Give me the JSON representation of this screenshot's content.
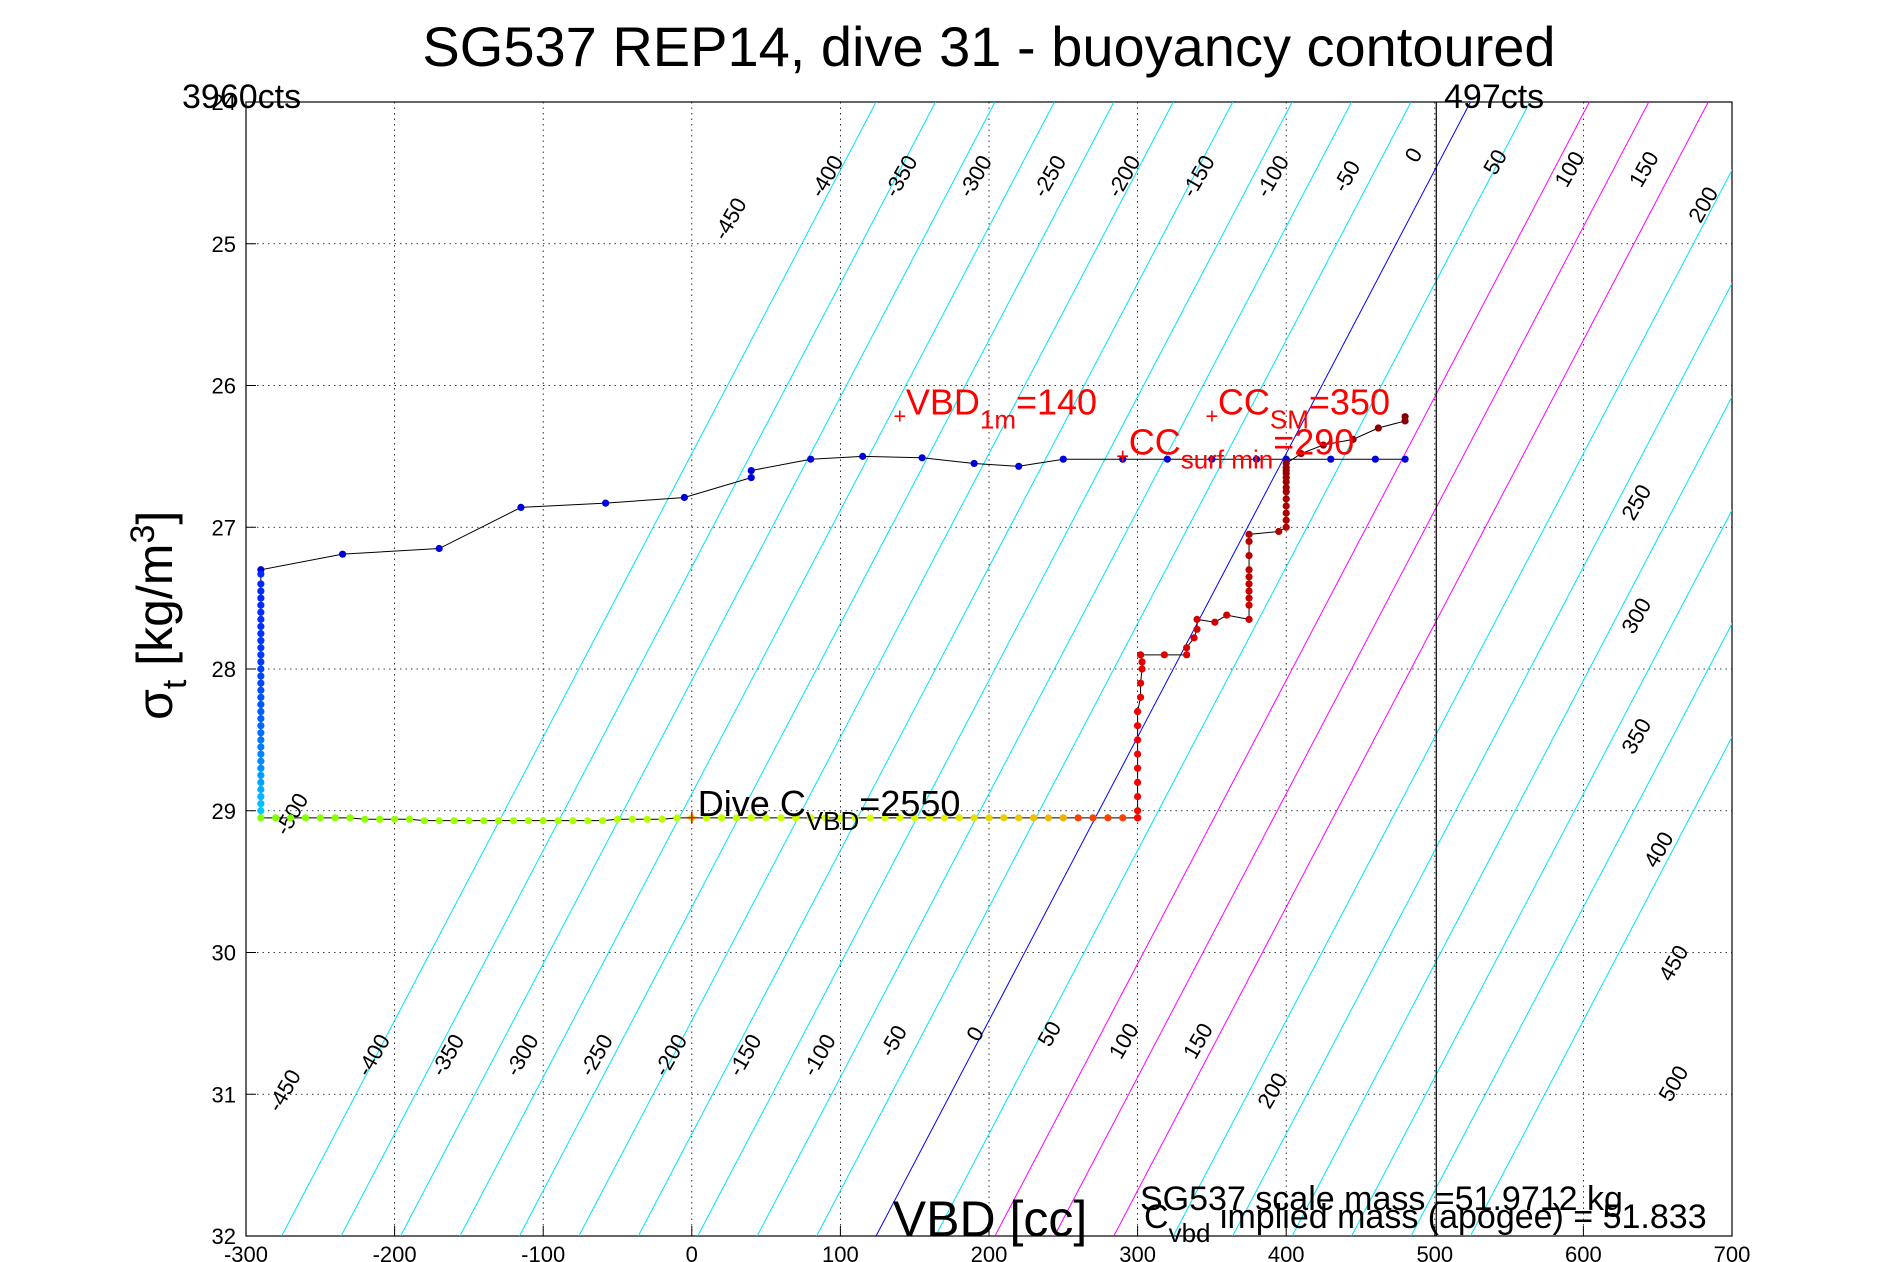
{
  "colors": {
    "background": "#ffffff",
    "grid": "#000000",
    "buoyancy_contour": "#00e5ee",
    "zero_contour": "#0000ff",
    "positive_contour": "#ff00ff",
    "annotation": "#ff0000",
    "dive_track": "#000000",
    "apogee_line": "#000000"
  },
  "chart_data": {
    "type": "scatter",
    "title": "SG537 REP14, dive 31 - buoyancy contoured",
    "xlabel": "VBD [cc]",
    "ylabel_main": "σ",
    "ylabel_sub": "t",
    "ylabel_unit": " [kg/m",
    "ylabel_sup": "3",
    "ylabel_close": "]",
    "xlim": [
      -300,
      700
    ],
    "ylim": [
      24,
      32
    ],
    "y_reversed": true,
    "grid": true,
    "xticks": [
      -300,
      -200,
      -100,
      0,
      100,
      200,
      300,
      400,
      500,
      600,
      700
    ],
    "xtick_labels": [
      "-300",
      "-200",
      "-100",
      "0",
      "100",
      "200",
      "300",
      "400",
      "500",
      "600",
      "700"
    ],
    "yticks": [
      25,
      26,
      27,
      28,
      29,
      30,
      31,
      32
    ],
    "ytick_labels": [
      "25",
      "26",
      "27",
      "28",
      "29",
      "30",
      "31",
      "32"
    ],
    "ytick_top_label": "24",
    "corner_left": "3960cts",
    "corner_right": "497cts",
    "apogee_vbd": 501,
    "contours": {
      "levels": [
        -500,
        -450,
        -400,
        -350,
        -300,
        -250,
        -200,
        -150,
        -100,
        -50,
        0,
        50,
        100,
        150,
        200,
        250,
        300,
        350,
        400,
        450,
        500
      ],
      "zero_x_at_y24": 524,
      "zero_x_at_y32": 124,
      "positive_magenta_levels": [
        100,
        150,
        200
      ],
      "top_labels": [
        {
          "level": "-450",
          "x": 30,
          "y": 24.85
        },
        {
          "level": "-400",
          "x": 95,
          "y": 24.55
        },
        {
          "level": "-350",
          "x": 145,
          "y": 24.55
        },
        {
          "level": "-300",
          "x": 195,
          "y": 24.55
        },
        {
          "level": "-250",
          "x": 245,
          "y": 24.55
        },
        {
          "level": "-200",
          "x": 295,
          "y": 24.55
        },
        {
          "level": "-150",
          "x": 345,
          "y": 24.55
        },
        {
          "level": "-100",
          "x": 395,
          "y": 24.55
        },
        {
          "level": "-50",
          "x": 445,
          "y": 24.55
        },
        {
          "level": "0",
          "x": 490,
          "y": 24.4
        },
        {
          "level": "50",
          "x": 545,
          "y": 24.45
        },
        {
          "level": "100",
          "x": 595,
          "y": 24.5
        },
        {
          "level": "150",
          "x": 645,
          "y": 24.5
        },
        {
          "level": "200",
          "x": 685,
          "y": 24.75
        },
        {
          "level": "250",
          "x": 640,
          "y": 26.85
        },
        {
          "level": "300",
          "x": 640,
          "y": 27.65
        },
        {
          "level": "350",
          "x": 640,
          "y": 28.5
        },
        {
          "level": "400",
          "x": 655,
          "y": 29.3
        },
        {
          "level": "450",
          "x": 665,
          "y": 30.1
        },
        {
          "level": "500",
          "x": 665,
          "y": 30.95
        },
        {
          "level": "-500",
          "x": -265,
          "y": 29.05
        }
      ],
      "bottom_labels": [
        {
          "level": "-450",
          "x": -270,
          "y": 31.0
        },
        {
          "level": "-400",
          "x": -210,
          "y": 30.75
        },
        {
          "level": "-350",
          "x": -160,
          "y": 30.75
        },
        {
          "level": "-300",
          "x": -110,
          "y": 30.75
        },
        {
          "level": "-250",
          "x": -60,
          "y": 30.75
        },
        {
          "level": "-200",
          "x": -10,
          "y": 30.75
        },
        {
          "level": "-150",
          "x": 40,
          "y": 30.75
        },
        {
          "level": "-100",
          "x": 90,
          "y": 30.75
        },
        {
          "level": "-50",
          "x": 140,
          "y": 30.65
        },
        {
          "level": "0",
          "x": 195,
          "y": 30.6
        },
        {
          "level": "50",
          "x": 245,
          "y": 30.6
        },
        {
          "level": "100",
          "x": 295,
          "y": 30.65
        },
        {
          "level": "150",
          "x": 345,
          "y": 30.65
        },
        {
          "level": "200",
          "x": 395,
          "y": 31.0
        }
      ]
    },
    "series": [
      {
        "marker_color": "#0000dd",
        "x": [
          480,
          460,
          430,
          400,
          380,
          350,
          320,
          290,
          250,
          220,
          190,
          155,
          115,
          80,
          40,
          40,
          -5,
          -58,
          -115,
          -170,
          -235,
          -290
        ],
        "y": [
          26.52,
          26.52,
          26.52,
          26.52,
          26.52,
          26.52,
          26.52,
          26.52,
          26.52,
          26.57,
          26.55,
          26.51,
          26.5,
          26.52,
          26.6,
          26.65,
          26.79,
          26.83,
          26.86,
          27.15,
          27.19,
          27.3
        ]
      },
      {
        "marker_color": "#0000ff",
        "x": [
          -290,
          -290,
          -290,
          -290,
          -290,
          -290,
          -290,
          -290,
          -290,
          -290,
          -290,
          -290,
          -290,
          -290,
          -290,
          -290,
          -290,
          -290,
          -290,
          -290,
          -290,
          -290,
          -290,
          -290,
          -290,
          -290,
          -290,
          -290,
          -290,
          -290,
          -290,
          -290,
          -290,
          -290
        ],
        "y": [
          27.33,
          27.4,
          27.45,
          27.5,
          27.55,
          27.6,
          27.65,
          27.7,
          27.75,
          27.8,
          27.85,
          27.9,
          27.95,
          28.0,
          28.05,
          28.1,
          28.15,
          28.2,
          28.25,
          28.3,
          28.35,
          28.4,
          28.45,
          28.5,
          28.55,
          28.6,
          28.65,
          28.7,
          28.75,
          28.8,
          28.85,
          28.9,
          28.95,
          29.0
        ]
      },
      {
        "marker_color": "#7fff00",
        "x": [
          -290,
          -280,
          -270,
          -260,
          -250,
          -240,
          -230,
          -220,
          -210,
          -200,
          -190,
          -180,
          -170,
          -160,
          -150,
          -140,
          -130,
          -120,
          -110,
          -100,
          -90,
          -80,
          -70,
          -60,
          -50,
          -40,
          -30,
          -20,
          -10,
          0,
          10,
          20,
          30,
          40,
          50,
          60,
          70,
          80,
          90,
          100,
          110,
          120,
          130,
          140,
          150,
          160,
          170,
          180,
          190,
          200,
          210,
          220,
          230,
          240,
          250,
          260,
          270,
          280,
          290,
          300
        ],
        "y": [
          29.05,
          29.05,
          29.05,
          29.05,
          29.05,
          29.05,
          29.05,
          29.06,
          29.06,
          29.06,
          29.06,
          29.07,
          29.07,
          29.07,
          29.07,
          29.07,
          29.07,
          29.07,
          29.07,
          29.07,
          29.07,
          29.07,
          29.07,
          29.07,
          29.06,
          29.06,
          29.06,
          29.06,
          29.05,
          29.05,
          29.05,
          29.05,
          29.05,
          29.05,
          29.05,
          29.05,
          29.05,
          29.05,
          29.05,
          29.05,
          29.05,
          29.05,
          29.05,
          29.05,
          29.05,
          29.05,
          29.05,
          29.05,
          29.05,
          29.05,
          29.05,
          29.05,
          29.05,
          29.05,
          29.05,
          29.05,
          29.05,
          29.05,
          29.05,
          29.05
        ]
      },
      {
        "marker_color": "#cc0000",
        "x": [
          300,
          300,
          300,
          300,
          300,
          300,
          300,
          300,
          300,
          302,
          302,
          303,
          303,
          302,
          318,
          333,
          333,
          338,
          340,
          340,
          352,
          360,
          375,
          375,
          375,
          375,
          375,
          375,
          375,
          375,
          375,
          375,
          395,
          400,
          400,
          400,
          400,
          400,
          400,
          400,
          400,
          400,
          400,
          400,
          400,
          400,
          410,
          425,
          445,
          462,
          480,
          480
        ],
        "y": [
          29.05,
          29.0,
          28.9,
          28.8,
          28.7,
          28.6,
          28.5,
          28.4,
          28.3,
          28.2,
          28.1,
          28.0,
          27.95,
          27.9,
          27.9,
          27.9,
          27.85,
          27.78,
          27.72,
          27.65,
          27.67,
          27.62,
          27.65,
          27.55,
          27.5,
          27.45,
          27.4,
          27.35,
          27.3,
          27.2,
          27.1,
          27.05,
          27.03,
          27.0,
          26.95,
          26.9,
          26.85,
          26.8,
          26.75,
          26.72,
          26.68,
          26.65,
          26.62,
          26.6,
          26.58,
          26.55,
          26.48,
          26.42,
          26.38,
          26.3,
          26.25,
          26.22
        ]
      }
    ],
    "annotations": [
      {
        "parts": [
          "VBD",
          "1m",
          "=140"
        ],
        "x": 140,
        "y": 26.22
      },
      {
        "parts": [
          "CC",
          "SM",
          "=350"
        ],
        "x": 350,
        "y": 26.22
      },
      {
        "parts": [
          "CC",
          "surf min",
          "=290"
        ],
        "x": 290,
        "y": 26.5
      },
      {
        "parts": [
          "Dive C",
          "VBD",
          "=2550"
        ],
        "x": 0,
        "y": 29.05
      }
    ],
    "footer": {
      "line1": "SG537 scale mass =51.9712 kg",
      "line2_main": "C",
      "line2_sub": "vbd",
      "line2_rest": " implied mass (apogee) = 51.833"
    }
  }
}
